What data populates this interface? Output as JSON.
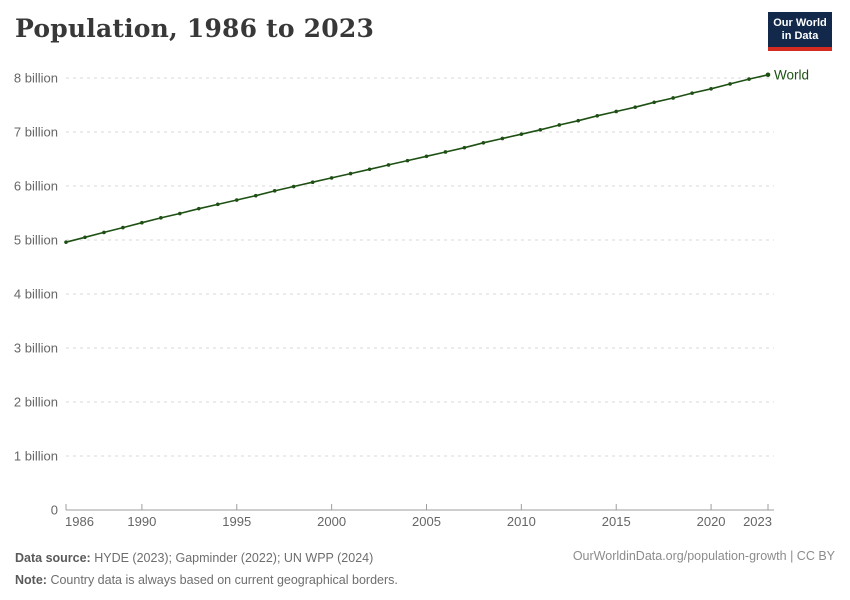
{
  "header": {
    "title": "Population, 1986 to 2023"
  },
  "logo": {
    "line1": "Our World",
    "line2": "in Data"
  },
  "colors": {
    "logo_bg": "#12294b",
    "logo_bar": "#d42b21",
    "series_green": "#1e5014",
    "grid": "#d9d9d9",
    "axis": "#9e9e9e",
    "tick_label": "#666666"
  },
  "chart_data": {
    "type": "line",
    "title": "Population, 1986 to 2023",
    "xlabel": "",
    "ylabel": "",
    "grid": true,
    "legend_position": "end-of-line",
    "ylim": [
      0,
      8.5
    ],
    "x": [
      1986,
      1987,
      1988,
      1989,
      1990,
      1991,
      1992,
      1993,
      1994,
      1995,
      1996,
      1997,
      1998,
      1999,
      2000,
      2001,
      2002,
      2003,
      2004,
      2005,
      2006,
      2007,
      2008,
      2009,
      2010,
      2011,
      2012,
      2013,
      2014,
      2015,
      2016,
      2017,
      2018,
      2019,
      2020,
      2021,
      2022,
      2023
    ],
    "series": [
      {
        "name": "World",
        "color": "#1e5014",
        "unit": "billion",
        "values": [
          4.96,
          5.05,
          5.14,
          5.23,
          5.32,
          5.41,
          5.49,
          5.58,
          5.66,
          5.74,
          5.82,
          5.91,
          5.99,
          6.07,
          6.15,
          6.23,
          6.31,
          6.39,
          6.47,
          6.55,
          6.63,
          6.71,
          6.8,
          6.88,
          6.96,
          7.04,
          7.13,
          7.21,
          7.3,
          7.38,
          7.46,
          7.55,
          7.63,
          7.72,
          7.8,
          7.89,
          7.98,
          8.06
        ]
      }
    ],
    "xticks": [
      1986,
      1990,
      1995,
      2000,
      2005,
      2010,
      2015,
      2020,
      2023
    ],
    "yticks": [
      {
        "value": 0,
        "label": "0"
      },
      {
        "value": 1,
        "label": "1 billion"
      },
      {
        "value": 2,
        "label": "2 billion"
      },
      {
        "value": 3,
        "label": "3 billion"
      },
      {
        "value": 4,
        "label": "4 billion"
      },
      {
        "value": 5,
        "label": "5 billion"
      },
      {
        "value": 6,
        "label": "6 billion"
      },
      {
        "value": 7,
        "label": "7 billion"
      },
      {
        "value": 8,
        "label": "8 billion"
      }
    ]
  },
  "footer": {
    "source_label": "Data source:",
    "source_text": "HYDE (2023); Gapminder (2022); UN WPP (2024)",
    "note_label": "Note:",
    "note_text": "Country data is always based on current geographical borders.",
    "attribution": "OurWorldinData.org/population-growth | CC BY"
  }
}
